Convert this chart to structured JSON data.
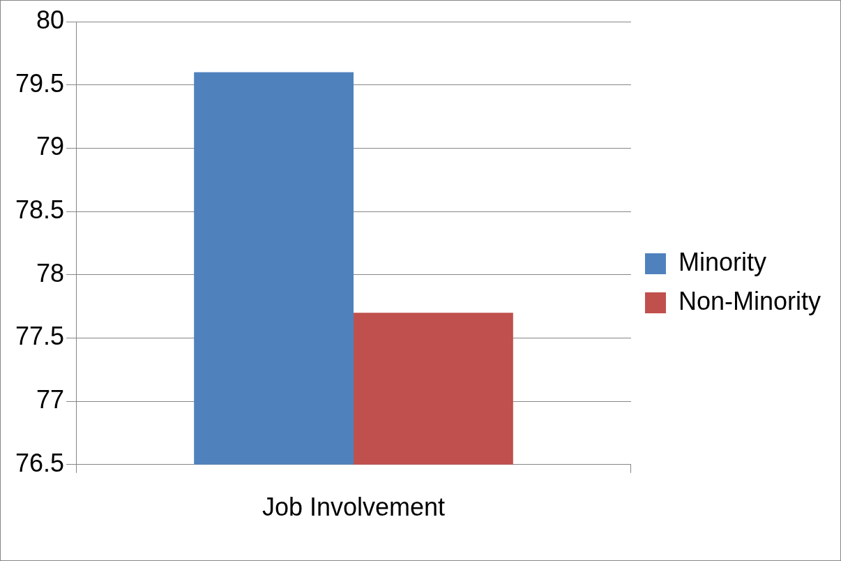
{
  "chart_data": {
    "type": "bar",
    "categories": [
      "Job Involvement"
    ],
    "series": [
      {
        "name": "Minority",
        "color": "#4f81bd",
        "values": [
          79.6
        ]
      },
      {
        "name": "Non-Minority",
        "color": "#c0504d",
        "values": [
          77.7
        ]
      }
    ],
    "ylim": [
      76.5,
      80
    ],
    "yticks": [
      76.5,
      77,
      77.5,
      78,
      78.5,
      79,
      79.5,
      80
    ],
    "grid": "y",
    "legend": "right"
  }
}
